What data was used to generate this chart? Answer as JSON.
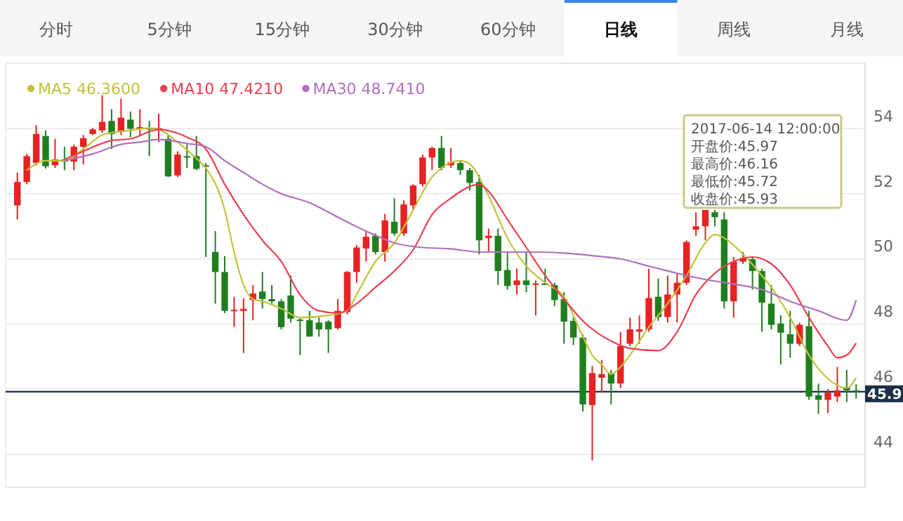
{
  "chart_data": {
    "type": "candlestick",
    "categories": [
      null,
      null,
      null,
      null,
      null,
      null,
      null,
      null,
      null,
      null,
      null,
      null,
      null,
      null,
      null,
      null,
      null,
      null,
      null,
      null,
      null,
      null,
      null,
      null,
      null,
      null,
      null,
      null,
      null,
      null,
      null,
      null,
      null,
      null,
      null,
      null,
      null,
      null,
      null,
      null,
      null,
      null,
      null,
      null,
      null,
      null,
      null,
      null,
      null,
      null,
      null,
      null,
      null,
      null,
      null,
      null,
      null,
      null,
      null,
      null,
      null,
      null,
      null,
      null,
      null,
      null,
      null,
      null,
      null,
      null,
      null,
      null,
      null,
      null,
      null,
      null,
      null,
      null,
      null,
      null,
      null,
      null,
      null,
      null,
      null,
      null,
      null,
      null,
      null,
      null
    ],
    "ohlc": [
      [
        51.64,
        52.65,
        51.21,
        52.36
      ],
      [
        52.36,
        53.22,
        52.29,
        53.15
      ],
      [
        52.94,
        54.1,
        52.87,
        53.83
      ],
      [
        53.77,
        53.94,
        52.77,
        52.84
      ],
      [
        52.87,
        53.68,
        52.79,
        53.05
      ],
      [
        53.05,
        53.44,
        52.72,
        52.98
      ],
      [
        52.98,
        53.51,
        52.72,
        53.44
      ],
      [
        53.44,
        53.8,
        52.9,
        53.7
      ],
      [
        53.83,
        54.02,
        53.8,
        53.97
      ],
      [
        53.94,
        55.02,
        53.87,
        54.2
      ],
      [
        54.23,
        54.59,
        53.37,
        53.83
      ],
      [
        53.9,
        54.92,
        53.8,
        54.33
      ],
      [
        54.27,
        54.52,
        53.73,
        53.99
      ],
      [
        53.97,
        54.59,
        53.8,
        54.04
      ],
      [
        54.01,
        54.23,
        53.15,
        53.99
      ],
      [
        53.94,
        54.45,
        53.58,
        54.01
      ],
      [
        53.68,
        53.8,
        52.51,
        52.53
      ],
      [
        52.56,
        53.3,
        52.51,
        53.2
      ],
      [
        53.15,
        53.51,
        52.79,
        53.12
      ],
      [
        53.15,
        53.77,
        52.72,
        52.76
      ],
      [
        52.87,
        52.94,
        50.06,
        52.84
      ],
      [
        50.21,
        50.85,
        48.63,
        49.6
      ],
      [
        49.6,
        50.09,
        48.34,
        48.41
      ],
      [
        48.41,
        48.84,
        47.91,
        48.44
      ],
      [
        48.41,
        48.8,
        47.12,
        48.47
      ],
      [
        48.74,
        49.2,
        48.12,
        48.94
      ],
      [
        49.0,
        49.6,
        48.48,
        48.77
      ],
      [
        48.77,
        49.2,
        48.63,
        48.7
      ],
      [
        48.7,
        48.77,
        47.84,
        47.91
      ],
      [
        48.88,
        49.49,
        48.05,
        48.17
      ],
      [
        48.14,
        48.2,
        47.05,
        48.12
      ],
      [
        48.12,
        48.41,
        47.62,
        47.62
      ],
      [
        48.05,
        48.2,
        47.62,
        47.84
      ],
      [
        48.08,
        48.12,
        47.12,
        47.84
      ],
      [
        47.88,
        48.77,
        47.84,
        48.41
      ],
      [
        48.37,
        49.63,
        48.3,
        49.6
      ],
      [
        49.6,
        50.42,
        49.27,
        50.35
      ],
      [
        50.32,
        50.85,
        49.92,
        50.68
      ],
      [
        50.71,
        50.78,
        50.14,
        50.21
      ],
      [
        50.21,
        51.38,
        49.92,
        51.18
      ],
      [
        51.14,
        51.86,
        50.71,
        50.78
      ],
      [
        50.78,
        51.79,
        50.71,
        51.67
      ],
      [
        51.64,
        52.29,
        51.5,
        52.25
      ],
      [
        52.29,
        53.2,
        52.22,
        53.11
      ],
      [
        53.11,
        53.44,
        52.72,
        53.4
      ],
      [
        53.4,
        53.77,
        52.72,
        52.79
      ],
      [
        52.87,
        53.4,
        52.79,
        52.97
      ],
      [
        52.94,
        53.01,
        52.58,
        52.72
      ],
      [
        52.72,
        52.79,
        52.1,
        52.33
      ],
      [
        52.36,
        52.58,
        50.14,
        50.57
      ],
      [
        50.64,
        50.93,
        50.21,
        50.71
      ],
      [
        50.71,
        50.93,
        49.2,
        49.63
      ],
      [
        49.66,
        50.21,
        49.06,
        49.17
      ],
      [
        49.2,
        49.7,
        48.91,
        49.34
      ],
      [
        49.34,
        50.21,
        48.98,
        49.2
      ],
      [
        49.23,
        49.34,
        48.27,
        49.25
      ],
      [
        49.25,
        49.7,
        49.2,
        49.2
      ],
      [
        49.2,
        49.27,
        48.55,
        48.74
      ],
      [
        48.77,
        48.98,
        47.4,
        48.08
      ],
      [
        48.1,
        48.2,
        47.36,
        47.59
      ],
      [
        47.59,
        47.69,
        45.32,
        45.54
      ],
      [
        45.52,
        46.72,
        43.82,
        46.5
      ],
      [
        46.36,
        46.9,
        45.9,
        46.47
      ],
      [
        46.5,
        46.6,
        45.54,
        46.18
      ],
      [
        46.18,
        47.76,
        46.04,
        47.33
      ],
      [
        47.4,
        48.2,
        47.33,
        47.84
      ],
      [
        47.77,
        48.27,
        47.4,
        47.84
      ],
      [
        47.84,
        49.7,
        47.77,
        48.8
      ],
      [
        48.84,
        49.4,
        48.1,
        48.22
      ],
      [
        48.22,
        49.49,
        48.05,
        48.91
      ],
      [
        48.91,
        49.56,
        48.05,
        49.27
      ],
      [
        49.27,
        50.57,
        49.2,
        50.52
      ],
      [
        50.9,
        51.43,
        50.71,
        51.0
      ],
      [
        51.0,
        51.5,
        50.57,
        51.5
      ],
      [
        51.43,
        51.5,
        51.0,
        51.28
      ],
      [
        51.21,
        51.43,
        48.48,
        48.7
      ],
      [
        48.7,
        50.06,
        48.2,
        49.92
      ],
      [
        49.92,
        50.21,
        49.85,
        50.03
      ],
      [
        49.99,
        50.06,
        49.06,
        49.63
      ],
      [
        49.63,
        49.7,
        47.77,
        48.66
      ],
      [
        48.63,
        49.2,
        47.84,
        47.98
      ],
      [
        48.02,
        48.27,
        46.76,
        47.74
      ],
      [
        47.69,
        48.41,
        46.97,
        47.4
      ],
      [
        47.4,
        48.05,
        47.33,
        47.98
      ],
      [
        47.94,
        48.41,
        45.68,
        45.78
      ],
      [
        45.82,
        46.18,
        45.25,
        45.68
      ],
      [
        45.68,
        46.01,
        45.28,
        45.9
      ],
      [
        45.78,
        46.69,
        45.61,
        45.97
      ],
      [
        46.07,
        46.6,
        45.61,
        45.97
      ],
      [
        45.97,
        46.16,
        45.72,
        45.93
      ]
    ],
    "colors": [
      "#e62222",
      "#e62222",
      "#e62222",
      "#1f7f1f",
      "#e62222",
      "#1f7f1f",
      "#e62222",
      "#e62222",
      "#e62222",
      "#e62222",
      "#1f7f1f",
      "#e62222",
      "#1f7f1f",
      "#e62222",
      "#1f7f1f",
      "#e62222",
      "#1f7f1f",
      "#e62222",
      "#1f7f1f",
      "#1f7f1f",
      "#1f7f1f",
      "#1f7f1f",
      "#1f7f1f",
      "#e62222",
      "#e62222",
      "#e62222",
      "#1f7f1f",
      "#1f7f1f",
      "#1f7f1f",
      "#1f7f1f",
      "#1f7f1f",
      "#1f7f1f",
      "#1f7f1f",
      "#1f7f1f",
      "#e62222",
      "#e62222",
      "#e62222",
      "#e62222",
      "#1f7f1f",
      "#e62222",
      "#1f7f1f",
      "#e62222",
      "#e62222",
      "#e62222",
      "#e62222",
      "#1f7f1f",
      "#e62222",
      "#1f7f1f",
      "#1f7f1f",
      "#1f7f1f",
      "#e62222",
      "#1f7f1f",
      "#1f7f1f",
      "#e62222",
      "#1f7f1f",
      "#e62222",
      "#1f7f1f",
      "#1f7f1f",
      "#1f7f1f",
      "#1f7f1f",
      "#1f7f1f",
      "#e62222",
      "#e62222",
      "#1f7f1f",
      "#e62222",
      "#e62222",
      "#e62222",
      "#e62222",
      "#1f7f1f",
      "#e62222",
      "#e62222",
      "#e62222",
      "#e62222",
      "#e62222",
      "#1f7f1f",
      "#1f7f1f",
      "#e62222",
      "#e62222",
      "#1f7f1f",
      "#1f7f1f",
      "#1f7f1f",
      "#1f7f1f",
      "#1f7f1f",
      "#e62222",
      "#1f7f1f",
      "#1f7f1f",
      "#e62222",
      "#e62222",
      "#1f7f1f",
      "#1f7f1f"
    ],
    "series": [
      {
        "type": "line",
        "name": "MA5 46.3600",
        "color": "#c2c23a",
        "values": [
          null,
          52.72,
          null,
          53.01,
          null,
          53.01,
          null,
          53.37,
          null,
          53.8,
          53.87,
          null,
          53.94,
          null,
          54.01,
          53.97,
          null,
          53.58,
          null,
          53.08,
          52.79,
          null,
          51.5,
          50.21,
          49.2,
          48.77,
          48.7,
          null,
          48.48,
          null,
          48.2,
          null,
          null,
          48.27,
          null,
          48.41,
          48.91,
          null,
          49.92,
          null,
          50.49,
          null,
          51.5,
          null,
          52.51,
          52.79,
          null,
          53.01,
          52.91,
          null,
          51.93,
          null,
          50.64,
          null,
          49.78,
          null,
          49.27,
          null,
          48.84,
          null,
          47.62,
          47.05,
          46.76,
          46.47,
          46.69,
          47.05,
          null,
          47.91,
          null,
          48.63,
          null,
          49.49,
          null,
          50.49,
          50.75,
          50.64,
          null,
          50.14,
          null,
          49.49,
          49.13,
          null,
          48.2,
          null,
          47.05,
          null,
          46.33,
          null,
          46.04,
          46.36
        ]
      },
      {
        "type": "line",
        "name": "MA10 47.4210",
        "color": "#e8404f",
        "values": [
          null,
          null,
          null,
          null,
          null,
          53.05,
          null,
          53.3,
          null,
          null,
          53.63,
          null,
          53.68,
          null,
          null,
          53.97,
          null,
          null,
          53.73,
          null,
          53.37,
          null,
          52.29,
          null,
          51.36,
          null,
          50.57,
          null,
          49.92,
          null,
          48.9,
          null,
          48.41,
          null,
          48.34,
          null,
          48.63,
          null,
          49.13,
          null,
          49.63,
          null,
          50.28,
          null,
          51.36,
          null,
          51.86,
          null,
          52.22,
          52.29,
          52.07,
          null,
          51.21,
          null,
          50.35,
          null,
          49.49,
          null,
          48.77,
          null,
          48.1,
          null,
          null,
          47.48,
          null,
          47.26,
          null,
          null,
          47.19,
          null,
          47.76,
          null,
          48.91,
          null,
          49.56,
          null,
          49.92,
          null,
          50.06,
          null,
          49.85,
          null,
          49.2,
          null,
          48.2,
          null,
          47.33,
          46.97,
          47.05,
          47.42
        ]
      },
      {
        "type": "line",
        "name": "MA30 48.7410",
        "color": "#b06fbf",
        "values": [
          null,
          null,
          null,
          null,
          null,
          53.01,
          null,
          null,
          53.22,
          null,
          null,
          53.51,
          null,
          53.58,
          null,
          53.66,
          null,
          null,
          53.54,
          null,
          53.44,
          null,
          53.01,
          null,
          52.65,
          null,
          52.29,
          null,
          52.0,
          null,
          null,
          51.72,
          null,
          null,
          51.28,
          null,
          null,
          50.85,
          null,
          null,
          50.49,
          null,
          null,
          50.35,
          null,
          null,
          50.31,
          null,
          null,
          50.21,
          null,
          null,
          50.21,
          null,
          null,
          50.21,
          null,
          null,
          50.18,
          null,
          null,
          50.1,
          null,
          null,
          50.0,
          null,
          null,
          49.78,
          null,
          null,
          49.56,
          null,
          null,
          49.37,
          null,
          null,
          49.23,
          null,
          null,
          49.06,
          null,
          null,
          48.7,
          null,
          null,
          48.41,
          null,
          null,
          48.12,
          48.74
        ]
      }
    ],
    "ylim": [
      43,
      56
    ],
    "yticks": [
      44,
      46,
      48,
      50,
      52,
      54
    ],
    "grid": "y",
    "tick_labels": "y",
    "legend": "top left",
    "ref_lines": [
      {
        "axis": "y",
        "value": 45.93,
        "label": "45.9",
        "color": "#1c2f45"
      }
    ],
    "annotations": [
      "分时",
      "5分钟",
      "15分钟",
      "30分钟",
      "60分钟",
      "日线",
      "周线",
      "月线",
      "2017-06-14 12:00:00",
      "开盘价:45.97",
      "最高价:46.16",
      "最低价:45.72",
      "收盘价:45.93"
    ]
  }
}
